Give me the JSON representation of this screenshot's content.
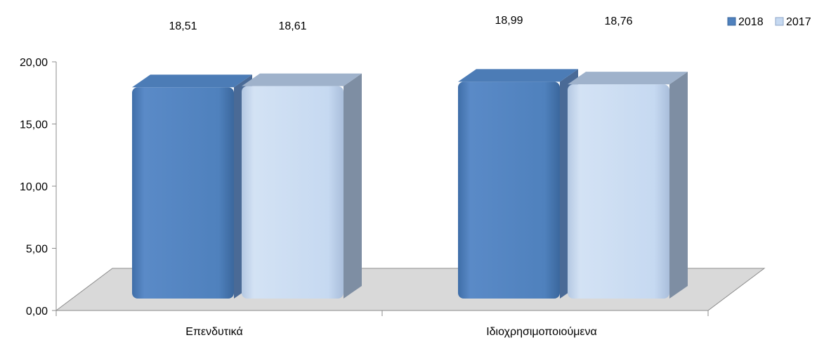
{
  "chart_data": {
    "type": "bar",
    "title": "",
    "xlabel": "",
    "ylabel": "",
    "categories": [
      "Επενδυτικά",
      "Ιδιοχρησιμοποιούμενα"
    ],
    "series": [
      {
        "name": "2018",
        "values": [
          18.51,
          18.99
        ],
        "color": "#4f81bd"
      },
      {
        "name": "2017",
        "values": [
          18.61,
          18.76
        ],
        "color": "#c6d9f1"
      }
    ],
    "ylim": [
      0,
      20
    ],
    "yticks": [
      "0,00",
      "5,00",
      "10,00",
      "15,00",
      "20,00"
    ],
    "data_labels": [
      [
        "18,51",
        "18,99"
      ],
      [
        "18,61",
        "18,76"
      ]
    ],
    "legend_position": "top-right",
    "grid": false,
    "style": "3d-bars"
  }
}
